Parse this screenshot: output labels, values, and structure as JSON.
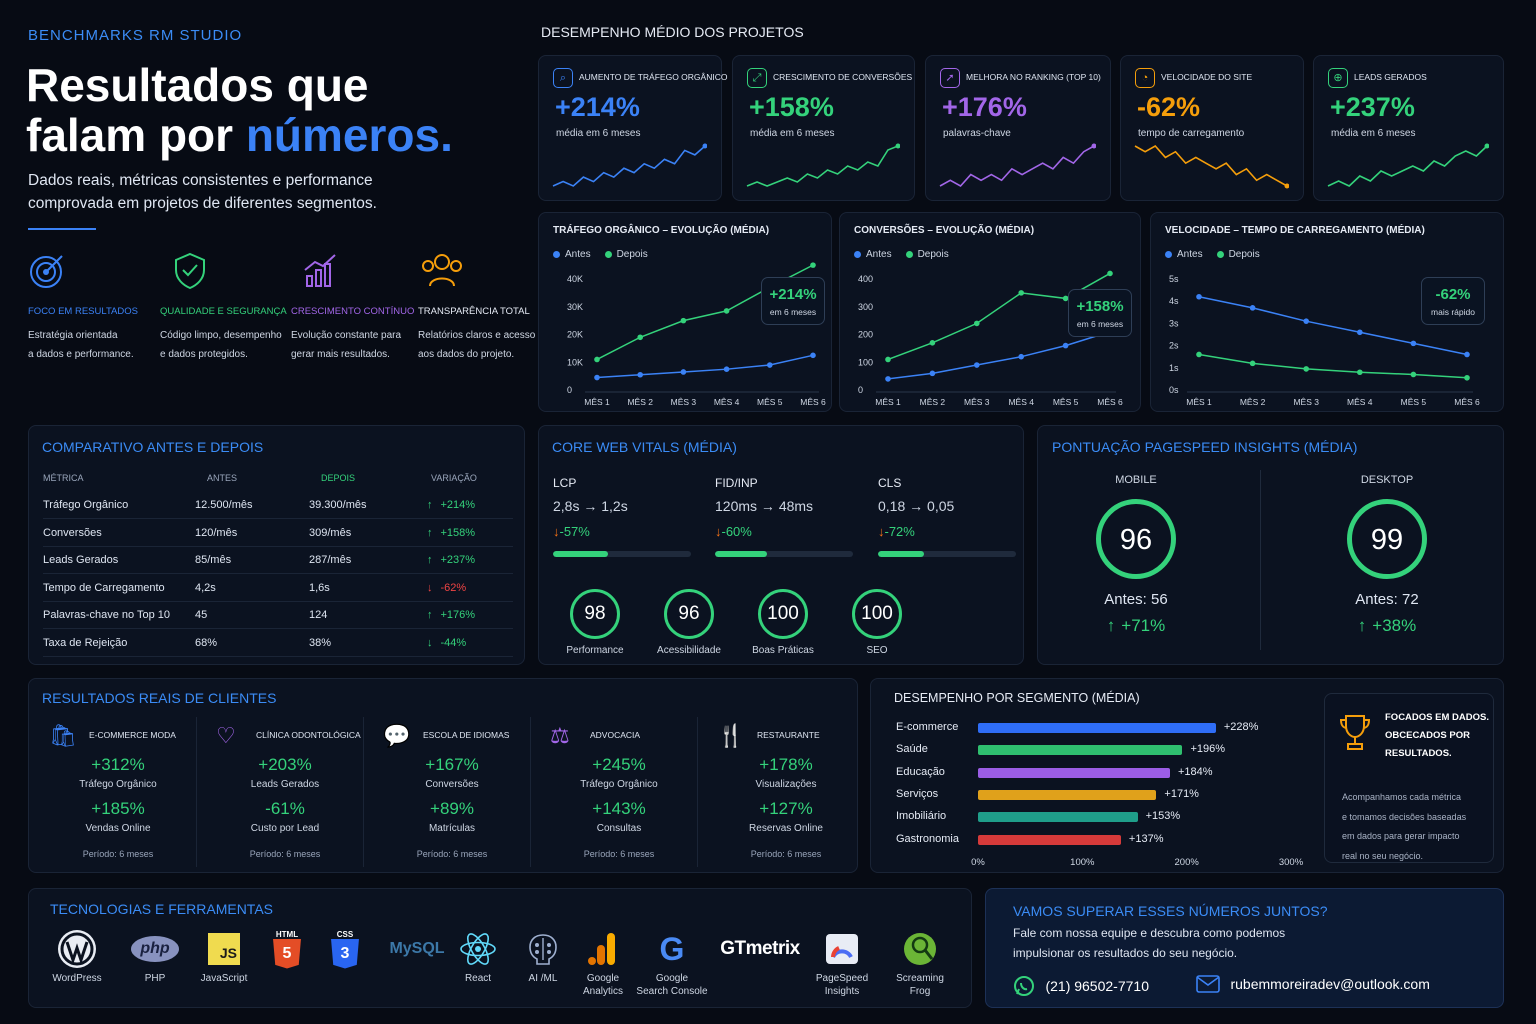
{
  "brand": "BENCHMARKS RM STUDIO",
  "hero": {
    "title_line1": "Resultados que",
    "title_line2a": "falam por ",
    "title_line2b": "números.",
    "subtitle_line1": "Dados reais, métricas consistentes e performance",
    "subtitle_line2": "comprovada em projetos de diferentes segmentos."
  },
  "values": [
    {
      "title": "FOCO EM RESULTADOS",
      "line1": "Estratégia orientada",
      "line2": "a dados e performance.",
      "icon": "target-icon",
      "color": "#3b82f6"
    },
    {
      "title": "QUALIDADE E SEGURANÇA",
      "line1": "Código limpo, desempenho",
      "line2": "e dados protegidos.",
      "icon": "shield-check-icon",
      "color": "#34d27b"
    },
    {
      "title": "CRESCIMENTO CONTÍNUO",
      "line1": "Evolução constante para",
      "line2": "gerar mais resultados.",
      "icon": "growth-chart-icon",
      "color": "#a266e8"
    },
    {
      "title": "TRANSPARÊNCIA TOTAL",
      "line1": "Relatórios claros e acesso",
      "line2": "aos dados do projeto.",
      "icon": "team-icon",
      "color": "#f59e0b"
    }
  ],
  "performance_title": "DESEMPENHO MÉDIO DOS PROJETOS",
  "kpis": [
    {
      "label": "AUMENTO DE TRÁFEGO ORGÂNICO",
      "value": "+214%",
      "sub": "média em 6 meses",
      "color": "#3b82f6",
      "icon": "search-icon",
      "glyph": "⌕",
      "trend": [
        3,
        4,
        3,
        5,
        4,
        6,
        5,
        7,
        6,
        8,
        7,
        9,
        8,
        11,
        10,
        12
      ]
    },
    {
      "label": "CRESCIMENTO DE CONVERSÕES",
      "value": "+158%",
      "sub": "média em 6 meses",
      "color": "#34d27b",
      "icon": "conversion-icon",
      "glyph": "⤢",
      "trend": [
        3,
        4,
        3,
        4,
        5,
        4,
        6,
        5,
        7,
        6,
        8,
        7,
        9,
        8,
        12,
        13
      ]
    },
    {
      "label": "MELHORA NO RANKING (TOP 10)",
      "value": "+176%",
      "sub": "palavras-chave",
      "color": "#a266e8",
      "icon": "rocket-icon",
      "glyph": "➚",
      "trend": [
        2,
        3,
        2,
        4,
        3,
        4,
        3,
        5,
        4,
        5,
        6,
        5,
        7,
        6,
        8,
        9
      ]
    },
    {
      "label": "VELOCIDADE DO SITE",
      "value": "-62%",
      "sub": "tempo de carregamento",
      "color": "#f59e0b",
      "icon": "speed-icon",
      "glyph": "◔",
      "trend": [
        10,
        9,
        10,
        8,
        9,
        7,
        8,
        7,
        6,
        7,
        5,
        6,
        4,
        5,
        4,
        3
      ]
    },
    {
      "label": "LEADS GERADOS",
      "value": "+237%",
      "sub": "média em 6 meses",
      "color": "#34d27b",
      "icon": "leads-icon",
      "glyph": "⊕",
      "trend": [
        2,
        3,
        2,
        4,
        3,
        5,
        4,
        5,
        6,
        5,
        7,
        6,
        8,
        9,
        8,
        10
      ]
    }
  ],
  "legend": {
    "before": "Antes",
    "after": "Depois"
  },
  "chart_data": [
    {
      "type": "line",
      "title": "TRÁFEGO ORGÂNICO – EVOLUÇÃO (MÉDIA)",
      "categories": [
        "MÊS 1",
        "MÊS 2",
        "MÊS 3",
        "MÊS 4",
        "MÊS 5",
        "MÊS 6"
      ],
      "yticks": [
        "0",
        "10K",
        "20K",
        "30K",
        "40K"
      ],
      "ylim": [
        0,
        40000
      ],
      "series": [
        {
          "name": "Antes",
          "values": [
            4500,
            5500,
            6500,
            7500,
            9000,
            12500
          ],
          "color": "#3b82f6"
        },
        {
          "name": "Depois",
          "values": [
            11000,
            19000,
            25000,
            28500,
            37000,
            45000
          ],
          "color": "#34d27b"
        }
      ],
      "callout_value": "+214%",
      "callout_sub": "em 6 meses"
    },
    {
      "type": "line",
      "title": "CONVERSÕES – EVOLUÇÃO (MÉDIA)",
      "categories": [
        "MÊS 1",
        "MÊS 2",
        "MÊS 3",
        "MÊS 4",
        "MÊS 5",
        "MÊS 6"
      ],
      "yticks": [
        "0",
        "100",
        "200",
        "300",
        "400"
      ],
      "ylim": [
        0,
        400
      ],
      "series": [
        {
          "name": "Antes",
          "values": [
            40,
            60,
            90,
            120,
            160,
            210
          ],
          "color": "#3b82f6"
        },
        {
          "name": "Depois",
          "values": [
            110,
            170,
            240,
            350,
            330,
            420
          ],
          "color": "#34d27b"
        }
      ],
      "callout_value": "+158%",
      "callout_sub": "em 6 meses"
    },
    {
      "type": "line",
      "title": "VELOCIDADE – TEMPO DE CARREGAMENTO (MÉDIA)",
      "categories": [
        "MÊS 1",
        "MÊS 2",
        "MÊS 3",
        "MÊS 4",
        "MÊS 5",
        "MÊS 6"
      ],
      "yticks": [
        "0s",
        "1s",
        "2s",
        "3s",
        "4s",
        "5s"
      ],
      "ylim": [
        0,
        5
      ],
      "series": [
        {
          "name": "Antes",
          "values": [
            4.2,
            3.7,
            3.1,
            2.6,
            2.1,
            1.6
          ],
          "color": "#3b82f6"
        },
        {
          "name": "Depois",
          "values": [
            1.6,
            1.2,
            0.95,
            0.8,
            0.7,
            0.55
          ],
          "color": "#34d27b"
        }
      ],
      "callout_value": "-62%",
      "callout_sub": "mais rápido"
    }
  ],
  "comparison": {
    "title": "COMPARATIVO ANTES E DEPOIS",
    "headers": [
      "MÉTRICA",
      "ANTES",
      "DEPOIS",
      "VARIAÇÃO"
    ],
    "rows": [
      {
        "metric": "Tráfego Orgânico",
        "before": "12.500/mês",
        "after": "39.300/mês",
        "arrow": "↑",
        "change": "+214%",
        "color": "#34d27b"
      },
      {
        "metric": "Conversões",
        "before": "120/mês",
        "after": "309/mês",
        "arrow": "↑",
        "change": "+158%",
        "color": "#34d27b"
      },
      {
        "metric": "Leads Gerados",
        "before": "85/mês",
        "after": "287/mês",
        "arrow": "↑",
        "change": "+237%",
        "color": "#34d27b"
      },
      {
        "metric": "Tempo de Carregamento",
        "before": "4,2s",
        "after": "1,6s",
        "arrow": "↓",
        "change": "-62%",
        "color": "#ef4444"
      },
      {
        "metric": "Palavras-chave no Top 10",
        "before": "45",
        "after": "124",
        "arrow": "↑",
        "change": "+176%",
        "color": "#34d27b"
      },
      {
        "metric": "Taxa de Rejeição",
        "before": "68%",
        "after": "38%",
        "arrow": "↓",
        "change": "-44%",
        "color": "#34d27b"
      }
    ]
  },
  "cwv": {
    "title": "CORE WEB VITALS (MÉDIA)",
    "items": [
      {
        "name": "LCP",
        "from": "2,8s",
        "to": "1,2s",
        "arrow": "↓",
        "pct": "-57%",
        "fill": 0.4
      },
      {
        "name": "FID/INP",
        "from": "120ms",
        "to": "48ms",
        "arrow": "↓",
        "pct": "-60%",
        "fill": 0.38
      },
      {
        "name": "CLS",
        "from": "0,18",
        "to": "0,05",
        "arrow": "↓",
        "pct": "-72%",
        "fill": 0.33
      }
    ],
    "scores": [
      {
        "value": "98",
        "label": "Performance"
      },
      {
        "value": "96",
        "label": "Acessibilidade"
      },
      {
        "value": "100",
        "label": "Boas Práticas"
      },
      {
        "value": "100",
        "label": "SEO"
      }
    ]
  },
  "pagespeed": {
    "title": "PONTUAÇÃO PAGESPEED INSIGHTS (MÉDIA)",
    "items": [
      {
        "device": "MOBILE",
        "score": "96",
        "before_label": "Antes: ",
        "before": "56",
        "arrow": "↑",
        "gain": "+71%"
      },
      {
        "device": "DESKTOP",
        "score": "99",
        "before_label": "Antes: ",
        "before": "72",
        "arrow": "↑",
        "gain": "+38%"
      }
    ]
  },
  "clients": {
    "title": "RESULTADOS REAIS DE CLIENTES",
    "items": [
      {
        "name": "E-COMMERCE MODA",
        "icon": "shopping-bag-icon",
        "glyph": "🛍",
        "color": "#3b82f6",
        "m1": "+312%",
        "l1": "Tráfego Orgânico",
        "m2": "+185%",
        "l2": "Vendas Online",
        "period": "Período: 6 meses"
      },
      {
        "name": "CLÍNICA ODONTOLÓGICA",
        "icon": "tooth-icon",
        "glyph": "♡",
        "color": "#a266e8",
        "m1": "+203%",
        "l1": "Leads Gerados",
        "m2": "-61%",
        "l2": "Custo por Lead",
        "period": "Período: 6 meses"
      },
      {
        "name": "ESCOLA DE IDIOMAS",
        "icon": "chat-bubble-icon",
        "glyph": "💬",
        "color": "#3b82f6",
        "m1": "+167%",
        "l1": "Conversões",
        "m2": "+89%",
        "l2": "Matrículas",
        "period": "Período: 6 meses"
      },
      {
        "name": "ADVOCACIA",
        "icon": "scales-icon",
        "glyph": "⚖",
        "color": "#a266e8",
        "m1": "+245%",
        "l1": "Tráfego Orgânico",
        "m2": "+143%",
        "l2": "Consultas",
        "period": "Período: 6 meses"
      },
      {
        "name": "RESTAURANTE",
        "icon": "cutlery-icon",
        "glyph": "🍴",
        "color": "#f59e0b",
        "m1": "+178%",
        "l1": "Visualizações",
        "m2": "+127%",
        "l2": "Reservas Online",
        "period": "Período: 6 meses"
      }
    ]
  },
  "segments": {
    "title": "DESEMPENHO POR SEGMENTO (MÉDIA)",
    "xticks": [
      "0%",
      "100%",
      "200%",
      "300%"
    ],
    "xmax": 300,
    "items": [
      {
        "name": "E-commerce",
        "value": 228,
        "label": "+228%",
        "color": "#2f6df6"
      },
      {
        "name": "Saúde",
        "value": 196,
        "label": "+196%",
        "color": "#2fbf6f"
      },
      {
        "name": "Educação",
        "value": 184,
        "label": "+184%",
        "color": "#9b5de5"
      },
      {
        "name": "Serviços",
        "value": 171,
        "label": "+171%",
        "color": "#e0a11b"
      },
      {
        "name": "Imobiliário",
        "value": 153,
        "label": "+153%",
        "color": "#1f9e8a"
      },
      {
        "name": "Gastronomia",
        "value": 137,
        "label": "+137%",
        "color": "#d63a3a"
      }
    ]
  },
  "focus": {
    "title1": "FOCADOS EM DADOS.",
    "title2": "OBCECADOS POR",
    "title3": "RESULTADOS.",
    "body": [
      "Acompanhamos cada métrica",
      "e tomamos decisões baseadas",
      "em dados para gerar impacto",
      "real no seu negócio."
    ]
  },
  "tech": {
    "title": "TECNOLOGIAS E FERRAMENTAS",
    "items": [
      {
        "name": "WordPress",
        "name2": ""
      },
      {
        "name": "PHP",
        "name2": ""
      },
      {
        "name": "JavaScript",
        "name2": ""
      },
      {
        "name": "",
        "name2": ""
      },
      {
        "name": "",
        "name2": ""
      },
      {
        "name": "",
        "name2": ""
      },
      {
        "name": "React",
        "name2": ""
      },
      {
        "name": "AI /ML",
        "name2": ""
      },
      {
        "name": "Google",
        "name2": "Analytics"
      },
      {
        "name": "Google",
        "name2": "Search Console"
      },
      {
        "name": "",
        "name2": ""
      },
      {
        "name": "PageSpeed",
        "name2": "Insights"
      },
      {
        "name": "Screaming",
        "name2": "Frog"
      }
    ],
    "logos": {
      "html": "HTML",
      "css": "CSS",
      "mysql": "MySQL",
      "gtmetrix": "GTmetrix",
      "php": "php",
      "js": "JS"
    }
  },
  "cta": {
    "title": "VAMOS SUPERAR ESSES NÚMEROS JUNTOS?",
    "line1": "Fale com nossa equipe e descubra como podemos",
    "line2": "impulsionar os resultados do seu negócio.",
    "phone": "(21) 96502-7710",
    "email": "rubemmoreiradev@outlook.com"
  }
}
